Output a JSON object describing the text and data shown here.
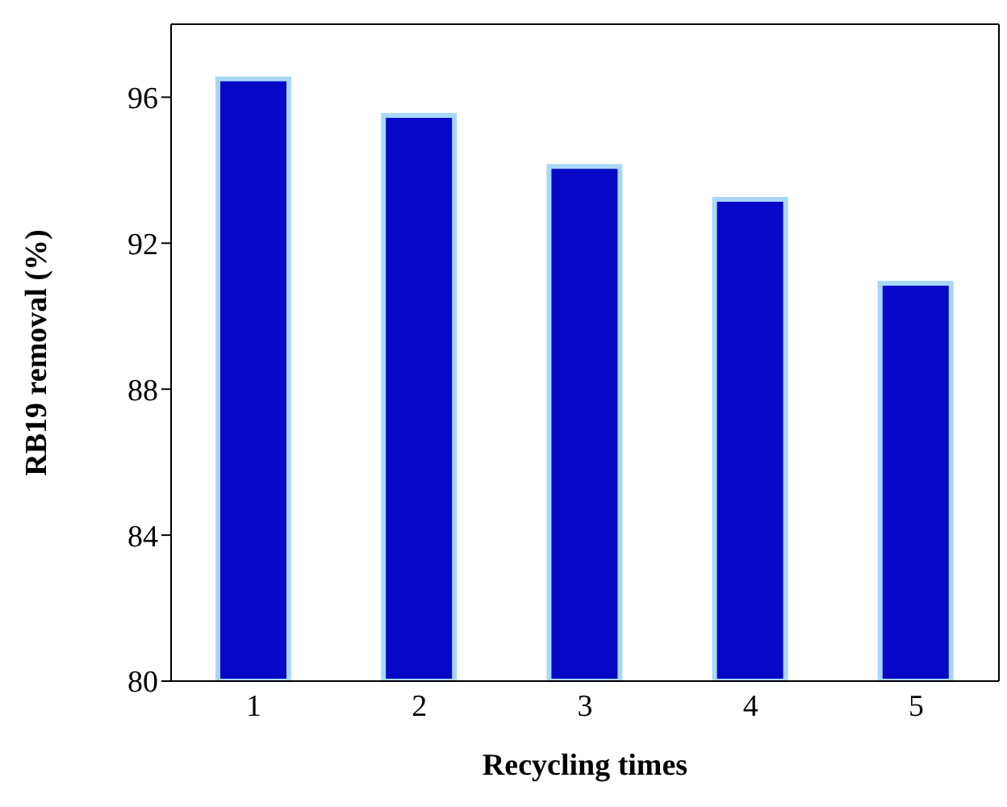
{
  "chart_data": {
    "type": "bar",
    "xlabel": "Recycling  times",
    "ylabel": "RB19  removal (%)",
    "categories": [
      "1",
      "2",
      "3",
      "4",
      "5"
    ],
    "values": [
      96.5,
      95.5,
      94.1,
      93.2,
      90.9
    ],
    "color": "#0808c8",
    "ylim": [
      80,
      98
    ],
    "yticks": [
      80,
      84,
      88,
      92,
      96
    ],
    "grid": false
  }
}
